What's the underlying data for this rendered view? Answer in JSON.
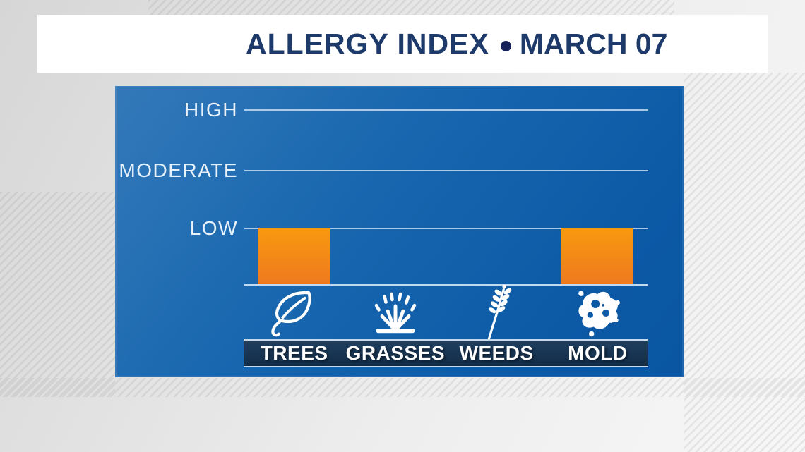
{
  "header": {
    "title": "ALLERGY INDEX",
    "separator": "•",
    "date": "MARCH 07"
  },
  "chart_data": {
    "type": "bar",
    "title": "ALLERGY INDEX",
    "subtitle": "MARCH 07",
    "categories": [
      "TREES",
      "GRASSES",
      "WEEDS",
      "MOLD"
    ],
    "values": [
      1,
      0,
      0,
      1
    ],
    "levels_by_category": [
      "LOW",
      "NONE",
      "NONE",
      "LOW"
    ],
    "y_axis_labels": [
      "HIGH",
      "MODERATE",
      "LOW"
    ],
    "y_scale": {
      "NONE": 0,
      "LOW": 1,
      "MODERATE": 2,
      "HIGH": 3
    },
    "ylim": [
      0,
      3
    ],
    "grid": true,
    "legend": false,
    "bar_color_top": "#f9990e",
    "bar_color_bottom": "#ee7a1f"
  },
  "category_icons": [
    "leaf-icon",
    "grass-icon",
    "weed-icon",
    "mold-icon"
  ],
  "colors": {
    "background_gray": "#e2e2e2",
    "banner_bg": "#ffffff",
    "title_navy": "#1d3a6b",
    "bullet_navy": "#16215a",
    "panel_blue_top": "#3379b9",
    "panel_blue_bottom": "#0a56a2",
    "gridline": "#cde2f6",
    "axis_label": "#e9f2fb",
    "strip_bg": "#122c47",
    "strip_border": "#c6daee",
    "category_text": "#ffffff",
    "icon_white": "#ffffff"
  }
}
